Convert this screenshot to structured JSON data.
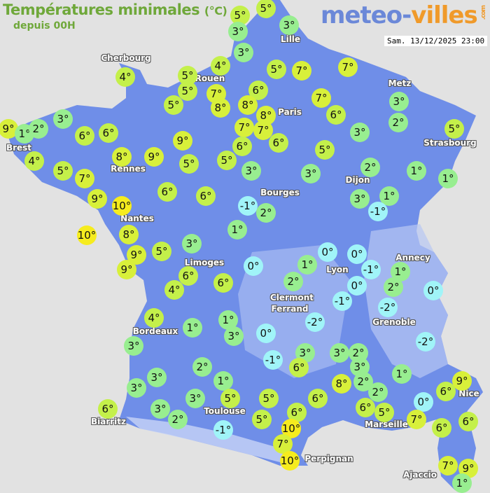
{
  "header": {
    "title": "Températures minimales",
    "unit": "(°C)",
    "subtitle": "depuis 00H",
    "logo_main": "meteo-",
    "logo_accent": "villes",
    "logo_suffix": ".com",
    "datetime": "Sam. 13/12/2025 23:00"
  },
  "colors": {
    "background": "#e2e2e2",
    "land": "#6f8ee8",
    "relief": "#b8c8f4",
    "cold": "#a0f4f8",
    "cool": "#98ee90",
    "mild": "#c4f04a",
    "warm": "#d8f03a",
    "hot": "#f6ec1e",
    "title": "#6fa83a"
  },
  "cities": [
    "Lille",
    "Cherbourg",
    "Rouen",
    "Metz",
    "Paris",
    "Brest",
    "Strasbourg",
    "Rennes",
    "Dijon",
    "Bourges",
    "Nantes",
    "Annecy",
    "Limoges",
    "Lyon",
    "Clermont",
    "Ferrand",
    "Grenoble",
    "Bordeaux",
    "Toulouse",
    "Biarritz",
    "Marseille",
    "Nice",
    "Perpignan",
    "Ajaccio"
  ],
  "stations": [
    "5°",
    "5°",
    "3°",
    "3°",
    "3°",
    "4°",
    "4°",
    "5°",
    "7°",
    "7°",
    "5°",
    "5°",
    "5°",
    "7°",
    "8°",
    "6°",
    "8°",
    "8°",
    "7°",
    "6°",
    "3°",
    "2°",
    "7°",
    "7°",
    "6°",
    "6°",
    "9°",
    "1°",
    "2°",
    "3°",
    "6°",
    "6°",
    "9°",
    "3°",
    "5°",
    "4°",
    "5°",
    "7°",
    "8°",
    "9°",
    "5°",
    "5°",
    "3°",
    "3°",
    "5°",
    "2°",
    "1°",
    "1°",
    "9°",
    "10°",
    "6°",
    "6°",
    "-1°",
    "2°",
    "3°",
    "1°",
    "-1°",
    "10°",
    "8°",
    "9°",
    "9°",
    "5°",
    "3°",
    "1°",
    "0°",
    "0°",
    "-1°",
    "0°",
    "1°",
    "0°",
    "6°",
    "4°",
    "6°",
    "1°",
    "2°",
    "0°",
    "2°",
    "-1°",
    "-2°",
    "-2°",
    "4°",
    "1°",
    "3°",
    "1°",
    "0°",
    "3°",
    "3°",
    "6°",
    "-1°",
    "3°",
    "2°",
    "3°",
    "2°",
    "-2°",
    "1°",
    "2°",
    "3°",
    "3°",
    "1°",
    "9°",
    "6°",
    "8°",
    "2°",
    "6°",
    "5°",
    "0°",
    "7°",
    "6°",
    "5°",
    "6°",
    "5°",
    "5°",
    "3°",
    "3°",
    "2°",
    "6°",
    "-1°",
    "10°",
    "7°",
    "10°",
    "6°",
    "6°",
    "7°",
    "9°",
    "1°"
  ]
}
